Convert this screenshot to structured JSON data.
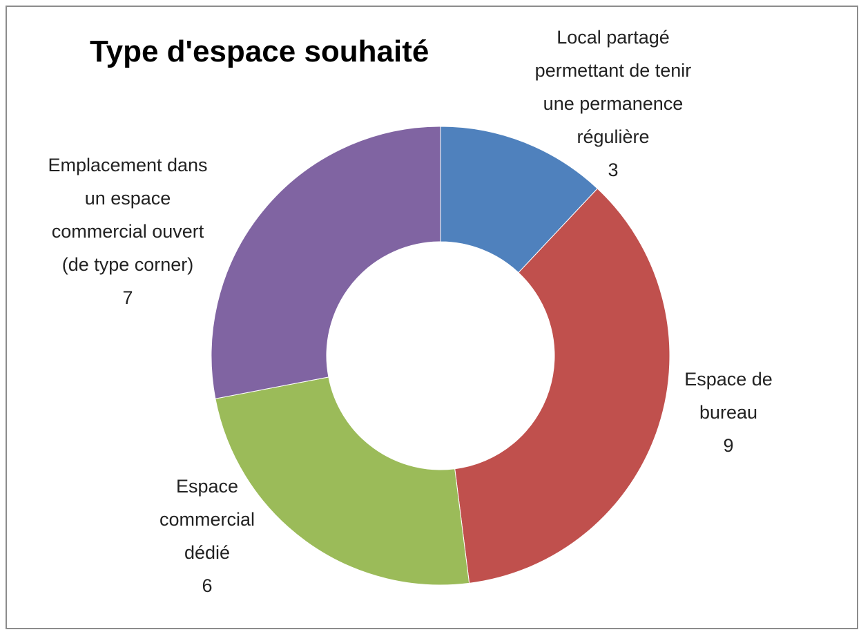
{
  "chart_data": {
    "type": "doughnut",
    "title": "Type d'espace souhaité",
    "categories": [
      "Local partagé permettant de tenir une permanence régulière",
      "Espace de bureau",
      "Espace commercial dédié",
      "Emplacement dans un espace commercial ouvert (de type corner)"
    ],
    "values": [
      3,
      9,
      6,
      7
    ],
    "colors": [
      "#4f81bd",
      "#c0504d",
      "#9bbb59",
      "#8064a2"
    ]
  }
}
